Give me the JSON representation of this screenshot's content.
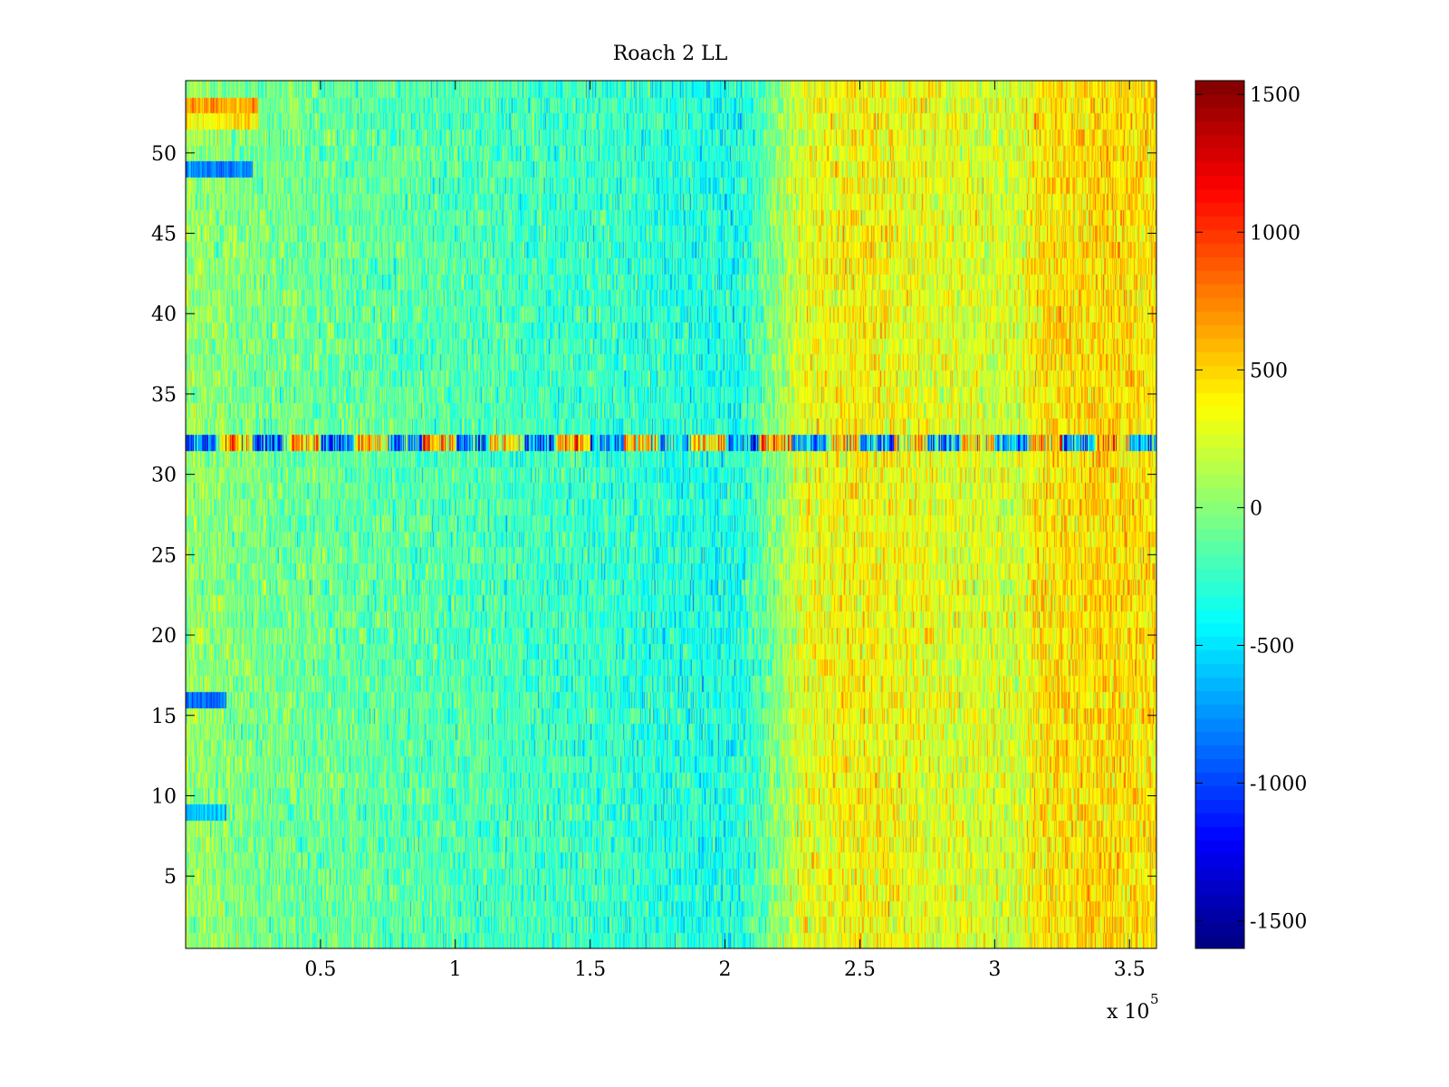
{
  "chart_data": {
    "type": "heatmap",
    "title": "Roach 2 LL",
    "xlabel": "",
    "ylabel": "",
    "x_multiplier_label": "x 10",
    "x_multiplier_exponent": "5",
    "xlim": [
      0,
      3.6
    ],
    "ylim": [
      0.5,
      54.5
    ],
    "x_ticks": [
      {
        "value": 0.5,
        "label": "0.5"
      },
      {
        "value": 1,
        "label": "1"
      },
      {
        "value": 1.5,
        "label": "1.5"
      },
      {
        "value": 2,
        "label": "2"
      },
      {
        "value": 2.5,
        "label": "2.5"
      },
      {
        "value": 3,
        "label": "3"
      },
      {
        "value": 3.5,
        "label": "3.5"
      }
    ],
    "y_ticks": [
      {
        "value": 5,
        "label": "5"
      },
      {
        "value": 10,
        "label": "10"
      },
      {
        "value": 15,
        "label": "15"
      },
      {
        "value": 20,
        "label": "20"
      },
      {
        "value": 25,
        "label": "25"
      },
      {
        "value": 30,
        "label": "30"
      },
      {
        "value": 35,
        "label": "35"
      },
      {
        "value": 40,
        "label": "40"
      },
      {
        "value": 45,
        "label": "45"
      },
      {
        "value": 50,
        "label": "50"
      }
    ],
    "rows": 54,
    "colormap": "jet",
    "clim": [
      -1600,
      1550
    ],
    "colorbar_ticks": [
      {
        "value": 1500,
        "label": "1500"
      },
      {
        "value": 1000,
        "label": "1000"
      },
      {
        "value": 500,
        "label": "500"
      },
      {
        "value": 0,
        "label": "0"
      },
      {
        "value": -500,
        "label": "-500"
      },
      {
        "value": -1000,
        "label": "-1000"
      },
      {
        "value": -1500,
        "label": "-1500"
      }
    ],
    "column_profile": [
      {
        "x": 0.0,
        "mean": 50
      },
      {
        "x": 0.25,
        "mean": -50
      },
      {
        "x": 0.5,
        "mean": -100
      },
      {
        "x": 1.0,
        "mean": -180
      },
      {
        "x": 1.5,
        "mean": -250
      },
      {
        "x": 1.8,
        "mean": -320
      },
      {
        "x": 2.05,
        "mean": -350
      },
      {
        "x": 2.15,
        "mean": -100
      },
      {
        "x": 2.3,
        "mean": 300
      },
      {
        "x": 2.5,
        "mean": 380
      },
      {
        "x": 2.8,
        "mean": 280
      },
      {
        "x": 3.1,
        "mean": 230
      },
      {
        "x": 3.15,
        "mean": 420
      },
      {
        "x": 3.4,
        "mean": 480
      },
      {
        "x": 3.6,
        "mean": 420
      }
    ],
    "row_features": [
      {
        "row": 53,
        "x_range": [
          0,
          0.27
        ],
        "mean": 650
      },
      {
        "row": 52,
        "x_range": [
          0,
          0.27
        ],
        "mean": 400
      },
      {
        "row": 49,
        "x_range": [
          0,
          0.25
        ],
        "mean": -800
      },
      {
        "row": 32,
        "x_range": [
          0,
          3.6
        ],
        "mean": "alternating -1400 to 900"
      },
      {
        "row": 16,
        "x_range": [
          0,
          0.15
        ],
        "mean": -900
      },
      {
        "row": 9,
        "x_range": [
          0,
          0.15
        ],
        "mean": -600
      }
    ]
  }
}
